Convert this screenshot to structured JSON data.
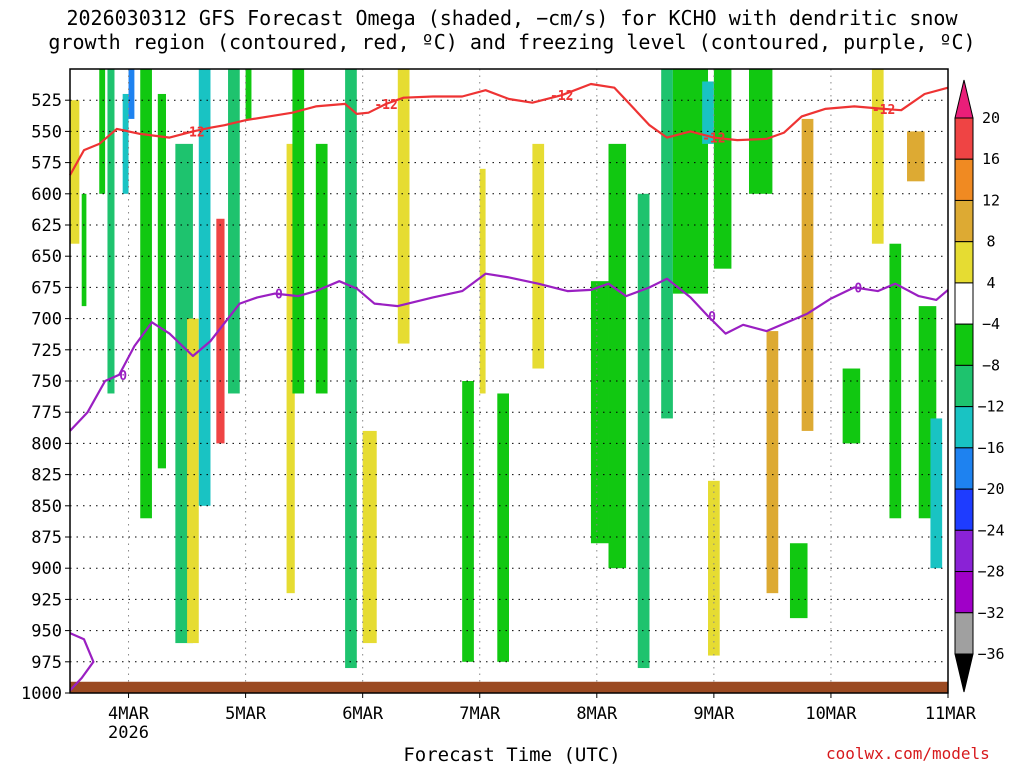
{
  "title_line1": "2026030312 GFS Forecast Omega (shaded, −cm/s) for KCHO with dendritic snow",
  "title_line2": "growth region (contoured, red, ºC) and freezing level (contoured, purple, ºC)",
  "credit": "coolwx.com/models",
  "chart_data": {
    "type": "heatmap",
    "title": "2026030312 GFS Forecast Omega (shaded, −cm/s) for KCHO with dendritic snow growth region (contoured, red, ºC) and freezing level (contoured, purple, ºC)",
    "xlabel": "Forecast Time (UTC)",
    "ylabel": "",
    "x_range_days": [
      "2026-03-03 12Z",
      "2026-03-11 00Z"
    ],
    "x_ticks": [
      {
        "label": "4MAR",
        "day": 4,
        "sublabel": "2026"
      },
      {
        "label": "5MAR",
        "day": 5
      },
      {
        "label": "6MAR",
        "day": 6
      },
      {
        "label": "7MAR",
        "day": 7
      },
      {
        "label": "8MAR",
        "day": 8
      },
      {
        "label": "9MAR",
        "day": 9
      },
      {
        "label": "10MAR",
        "day": 10
      },
      {
        "label": "11MAR",
        "day": 11
      }
    ],
    "y_range_hpa": [
      500,
      1000
    ],
    "y_ticks": [
      525,
      550,
      575,
      600,
      625,
      650,
      675,
      700,
      725,
      750,
      775,
      800,
      825,
      850,
      875,
      900,
      925,
      950,
      975,
      1000
    ],
    "grid": true,
    "colorbar": {
      "labels": [
        "20",
        "16",
        "12",
        "8",
        "4",
        "−4",
        "−8",
        "−12",
        "−16",
        "−20",
        "−24",
        "−28",
        "−32",
        "−36"
      ],
      "bands": [
        {
          "min": 20,
          "max": null,
          "color": "#ea1e79"
        },
        {
          "min": 16,
          "max": 20,
          "color": "#ef4444"
        },
        {
          "min": 12,
          "max": 16,
          "color": "#f08a22"
        },
        {
          "min": 8,
          "max": 12,
          "color": "#ddaa33"
        },
        {
          "min": 4,
          "max": 8,
          "color": "#e6dc32"
        },
        {
          "min": -4,
          "max": 4,
          "color": "#ffffff"
        },
        {
          "min": -8,
          "max": -4,
          "color": "#11c811"
        },
        {
          "min": -12,
          "max": -8,
          "color": "#1ec36e"
        },
        {
          "min": -16,
          "max": -12,
          "color": "#19c3c3"
        },
        {
          "min": -20,
          "max": -16,
          "color": "#1e82f0"
        },
        {
          "min": -24,
          "max": -20,
          "color": "#1e3cff"
        },
        {
          "min": -28,
          "max": -24,
          "color": "#8a22d6"
        },
        {
          "min": -32,
          "max": -28,
          "color": "#a000c8"
        },
        {
          "min": -36,
          "max": -32,
          "color": "#a0a0a0"
        },
        {
          "min": null,
          "max": -36,
          "color": "#000000"
        }
      ]
    },
    "contours": {
      "dgz_minus12": {
        "label": "-12",
        "color": "#ee3333",
        "points": [
          [
            3.5,
            585
          ],
          [
            3.62,
            565
          ],
          [
            3.75,
            560
          ],
          [
            3.9,
            548
          ],
          [
            4.1,
            552
          ],
          [
            4.35,
            555
          ],
          [
            4.55,
            550
          ],
          [
            4.7,
            547
          ],
          [
            4.82,
            545
          ],
          [
            5.0,
            541
          ],
          [
            5.2,
            538
          ],
          [
            5.4,
            535
          ],
          [
            5.6,
            530
          ],
          [
            5.85,
            528
          ],
          [
            5.95,
            536
          ],
          [
            6.05,
            535
          ],
          [
            6.2,
            528
          ],
          [
            6.35,
            523
          ],
          [
            6.6,
            522
          ],
          [
            6.85,
            522
          ],
          [
            7.05,
            517
          ],
          [
            7.25,
            524
          ],
          [
            7.45,
            527
          ],
          [
            7.7,
            521
          ],
          [
            7.95,
            512
          ],
          [
            8.15,
            515
          ],
          [
            8.3,
            530
          ],
          [
            8.45,
            545
          ],
          [
            8.6,
            555
          ],
          [
            8.8,
            550
          ],
          [
            9.0,
            555
          ],
          [
            9.2,
            557
          ],
          [
            9.45,
            556
          ],
          [
            9.6,
            551
          ],
          [
            9.75,
            538
          ],
          [
            9.95,
            532
          ],
          [
            10.2,
            530
          ],
          [
            10.45,
            532
          ],
          [
            10.6,
            533
          ],
          [
            10.8,
            520
          ],
          [
            11.0,
            515
          ]
        ]
      },
      "freezing_level_0": {
        "label": "0",
        "color": "#9a1fc2",
        "points": [
          [
            3.5,
            790
          ],
          [
            3.65,
            775
          ],
          [
            3.8,
            750
          ],
          [
            3.92,
            745
          ],
          [
            4.05,
            722
          ],
          [
            4.2,
            703
          ],
          [
            4.35,
            712
          ],
          [
            4.55,
            730
          ],
          [
            4.7,
            718
          ],
          [
            4.85,
            700
          ],
          [
            4.95,
            688
          ],
          [
            5.1,
            683
          ],
          [
            5.25,
            680
          ],
          [
            5.45,
            682
          ],
          [
            5.6,
            678
          ],
          [
            5.8,
            670
          ],
          [
            5.95,
            676
          ],
          [
            6.1,
            688
          ],
          [
            6.3,
            690
          ],
          [
            6.6,
            683
          ],
          [
            6.85,
            678
          ],
          [
            7.05,
            664
          ],
          [
            7.25,
            667
          ],
          [
            7.5,
            672
          ],
          [
            7.75,
            678
          ],
          [
            7.95,
            677
          ],
          [
            8.1,
            672
          ],
          [
            8.25,
            682
          ],
          [
            8.45,
            675
          ],
          [
            8.6,
            668
          ],
          [
            8.8,
            683
          ],
          [
            8.95,
            698
          ],
          [
            9.1,
            712
          ],
          [
            9.25,
            705
          ],
          [
            9.45,
            710
          ],
          [
            9.65,
            702
          ],
          [
            9.8,
            696
          ],
          [
            10.0,
            684
          ],
          [
            10.2,
            675
          ],
          [
            10.4,
            678
          ],
          [
            10.55,
            672
          ],
          [
            10.75,
            682
          ],
          [
            10.9,
            685
          ],
          [
            11.0,
            677
          ]
        ],
        "lower_segment": [
          [
            3.5,
            952
          ],
          [
            3.62,
            957
          ],
          [
            3.7,
            975
          ],
          [
            3.6,
            988
          ],
          [
            3.5,
            998
          ]
        ]
      }
    },
    "omega_regions": [
      {
        "x": [
          3.5,
          3.58
        ],
        "p": [
          525,
          640
        ],
        "value": 6
      },
      {
        "x": [
          3.6,
          3.64
        ],
        "p": [
          600,
          690
        ],
        "value": -6
      },
      {
        "x": [
          3.75,
          3.8
        ],
        "p": [
          500,
          600
        ],
        "value": -6
      },
      {
        "x": [
          3.82,
          3.88
        ],
        "p": [
          500,
          760
        ],
        "value": -10
      },
      {
        "x": [
          3.95,
          4.0
        ],
        "p": [
          520,
          600
        ],
        "value": -14
      },
      {
        "x": [
          4.0,
          4.05
        ],
        "p": [
          500,
          540
        ],
        "value": -18
      },
      {
        "x": [
          4.1,
          4.2
        ],
        "p": [
          500,
          860
        ],
        "value": -8
      },
      {
        "x": [
          4.25,
          4.32
        ],
        "p": [
          520,
          820
        ],
        "value": -6
      },
      {
        "x": [
          4.4,
          4.55
        ],
        "p": [
          560,
          960
        ],
        "value": -10
      },
      {
        "x": [
          4.5,
          4.6
        ],
        "p": [
          700,
          960
        ],
        "value": 6
      },
      {
        "x": [
          4.6,
          4.7
        ],
        "p": [
          500,
          850
        ],
        "value": -14
      },
      {
        "x": [
          4.75,
          4.82
        ],
        "p": [
          620,
          800
        ],
        "value": 18
      },
      {
        "x": [
          4.85,
          4.95
        ],
        "p": [
          500,
          760
        ],
        "value": -10
      },
      {
        "x": [
          5.0,
          5.05
        ],
        "p": [
          500,
          540
        ],
        "value": -6
      },
      {
        "x": [
          5.35,
          5.42
        ],
        "p": [
          560,
          920
        ],
        "value": 6
      },
      {
        "x": [
          5.4,
          5.5
        ],
        "p": [
          500,
          760
        ],
        "value": -6
      },
      {
        "x": [
          5.6,
          5.7
        ],
        "p": [
          560,
          760
        ],
        "value": -6
      },
      {
        "x": [
          5.85,
          5.95
        ],
        "p": [
          500,
          980
        ],
        "value": -10
      },
      {
        "x": [
          6.0,
          6.12
        ],
        "p": [
          790,
          960
        ],
        "value": 6
      },
      {
        "x": [
          6.3,
          6.4
        ],
        "p": [
          500,
          720
        ],
        "value": 6
      },
      {
        "x": [
          6.85,
          6.95
        ],
        "p": [
          750,
          975
        ],
        "value": -8
      },
      {
        "x": [
          7.0,
          7.05
        ],
        "p": [
          580,
          760
        ],
        "value": 6
      },
      {
        "x": [
          7.15,
          7.25
        ],
        "p": [
          760,
          975
        ],
        "value": -8
      },
      {
        "x": [
          7.45,
          7.55
        ],
        "p": [
          560,
          740
        ],
        "value": 6
      },
      {
        "x": [
          7.95,
          8.1
        ],
        "p": [
          670,
          880
        ],
        "value": -8
      },
      {
        "x": [
          8.1,
          8.25
        ],
        "p": [
          560,
          900
        ],
        "value": -8
      },
      {
        "x": [
          8.35,
          8.45
        ],
        "p": [
          600,
          980
        ],
        "value": -10
      },
      {
        "x": [
          8.55,
          8.65
        ],
        "p": [
          500,
          780
        ],
        "value": -10
      },
      {
        "x": [
          8.65,
          8.95
        ],
        "p": [
          500,
          680
        ],
        "value": -6
      },
      {
        "x": [
          8.9,
          9.0
        ],
        "p": [
          510,
          560
        ],
        "value": -14
      },
      {
        "x": [
          8.95,
          9.05
        ],
        "p": [
          830,
          970
        ],
        "value": 6
      },
      {
        "x": [
          9.0,
          9.15
        ],
        "p": [
          500,
          660
        ],
        "value": -6
      },
      {
        "x": [
          9.3,
          9.5
        ],
        "p": [
          500,
          600
        ],
        "value": -6
      },
      {
        "x": [
          9.45,
          9.55
        ],
        "p": [
          710,
          920
        ],
        "value": 10
      },
      {
        "x": [
          9.75,
          9.85
        ],
        "p": [
          540,
          790
        ],
        "value": 10
      },
      {
        "x": [
          9.65,
          9.8
        ],
        "p": [
          880,
          940
        ],
        "value": -6
      },
      {
        "x": [
          10.1,
          10.25
        ],
        "p": [
          740,
          800
        ],
        "value": -6
      },
      {
        "x": [
          10.35,
          10.45
        ],
        "p": [
          500,
          640
        ],
        "value": 6
      },
      {
        "x": [
          10.5,
          10.6
        ],
        "p": [
          640,
          860
        ],
        "value": -6
      },
      {
        "x": [
          10.65,
          10.8
        ],
        "p": [
          550,
          590
        ],
        "value": 8
      },
      {
        "x": [
          10.75,
          10.9
        ],
        "p": [
          690,
          860
        ],
        "value": -8
      },
      {
        "x": [
          10.85,
          10.95
        ],
        "p": [
          780,
          900
        ],
        "value": -14
      }
    ],
    "terrain_band": {
      "p_top": 995,
      "p_bottom": 1000,
      "color": "#9b4a22"
    }
  }
}
